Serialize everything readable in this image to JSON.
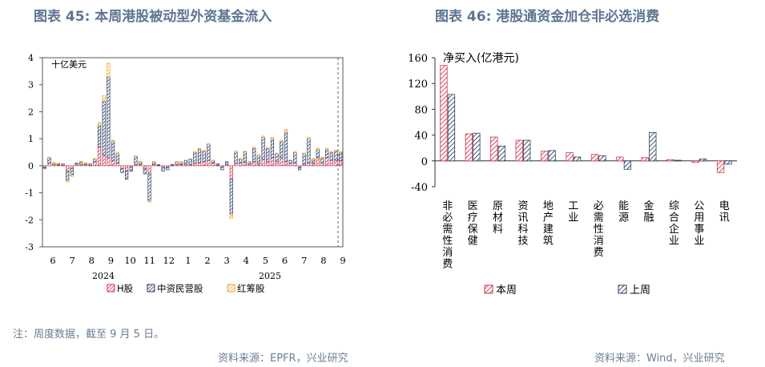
{
  "left": {
    "title": "图表 45: 本周港股被动型外资基金流入",
    "unit_label": "十亿美元",
    "footnote": "注：周度数据，截至 9 月 5 日。",
    "source": "资料来源：EPFR，兴业研究"
  },
  "right": {
    "title": "图表 46: 港股通资金加仓非必选消费",
    "unit_label": "净买入(亿港元)",
    "source": "资料来源：Wind，兴业研究"
  },
  "colors": {
    "h_share": "#d0344f",
    "private": "#2e3f66",
    "red_chip": "#f0a832",
    "title": "#5d7693"
  },
  "chart_data": [
    {
      "type": "bar",
      "stacked": true,
      "title": "本周港股被动型外资基金流入",
      "ylabel": "十亿美元",
      "ylim": [
        -3,
        4
      ],
      "yticks": [
        -3,
        -2,
        -1,
        0,
        1,
        2,
        3,
        4
      ],
      "month_labels": [
        "6",
        "7",
        "8",
        "9",
        "10",
        "11",
        "12",
        "1",
        "2",
        "3",
        "4",
        "5",
        "6",
        "7",
        "8",
        "9"
      ],
      "year_labels": [
        "2024",
        "2025"
      ],
      "legend": [
        "H股",
        "中资民营股",
        "红筹股"
      ],
      "legend_position": "bottom",
      "x": [
        "2024-06-07",
        "2024-06-14",
        "2024-06-21",
        "2024-06-28",
        "2024-07-05",
        "2024-07-12",
        "2024-07-19",
        "2024-07-26",
        "2024-08-02",
        "2024-08-09",
        "2024-08-16",
        "2024-08-23",
        "2024-08-30",
        "2024-09-06",
        "2024-09-13",
        "2024-09-20",
        "2024-09-27",
        "2024-10-04",
        "2024-10-11",
        "2024-10-18",
        "2024-10-25",
        "2024-11-01",
        "2024-11-08",
        "2024-11-15",
        "2024-11-22",
        "2024-11-29",
        "2024-12-06",
        "2024-12-13",
        "2024-12-20",
        "2024-12-27",
        "2025-01-03",
        "2025-01-10",
        "2025-01-17",
        "2025-01-24",
        "2025-01-31",
        "2025-02-07",
        "2025-02-14",
        "2025-02-21",
        "2025-02-28",
        "2025-03-07",
        "2025-03-14",
        "2025-03-21",
        "2025-03-28",
        "2025-04-04",
        "2025-04-11",
        "2025-04-18",
        "2025-04-25",
        "2025-05-02",
        "2025-05-09",
        "2025-05-16",
        "2025-05-23",
        "2025-05-30",
        "2025-06-06",
        "2025-06-13",
        "2025-06-20",
        "2025-06-27",
        "2025-07-04",
        "2025-07-11",
        "2025-07-18",
        "2025-07-25",
        "2025-08-01",
        "2025-08-08",
        "2025-08-15",
        "2025-08-22",
        "2025-08-29",
        "2025-09-05"
      ],
      "series": [
        {
          "name": "H股",
          "values": [
            -0.05,
            0.1,
            0.05,
            0.03,
            0.02,
            -0.2,
            -0.1,
            0.05,
            0.05,
            0.05,
            0.02,
            0.15,
            0.7,
            0.4,
            0.3,
            0.2,
            0.1,
            -0.1,
            -0.2,
            -0.05,
            0.05,
            0.05,
            -0.1,
            -0.3,
            0.05,
            0.02,
            -0.05,
            -0.05,
            0.02,
            0.05,
            0.04,
            0.05,
            0.05,
            0.1,
            0.12,
            0.15,
            0.2,
            0.1,
            0.02,
            -0.05,
            0.05,
            -0.5,
            0.1,
            0.1,
            0.12,
            0.05,
            0.15,
            0.08,
            0.25,
            0.15,
            0.3,
            0.15,
            0.3,
            0.15,
            0.1,
            0.1,
            -0.05,
            0.05,
            0.1,
            0.1,
            0.3,
            0.1,
            0.3,
            0.2,
            0.2,
            0.2
          ]
        },
        {
          "name": "中资民营股",
          "values": [
            -0.05,
            0.2,
            0.05,
            0.05,
            0.05,
            -0.35,
            -0.25,
            0.05,
            0.1,
            0.05,
            0.05,
            0.1,
            0.8,
            2.0,
            3.0,
            0.7,
            0.35,
            -0.15,
            -0.3,
            -0.15,
            0.3,
            0.1,
            -0.2,
            -1.0,
            0.1,
            0.02,
            -0.15,
            -0.1,
            0.03,
            0.1,
            0.1,
            0.15,
            0.2,
            0.4,
            0.5,
            0.4,
            0.6,
            0.1,
            0.05,
            -0.1,
            0.1,
            -1.3,
            0.4,
            0.15,
            0.4,
            0.1,
            0.5,
            0.3,
            0.8,
            0.5,
            0.7,
            0.3,
            0.6,
            1.1,
            0.1,
            0.4,
            -0.1,
            0.4,
            0.9,
            0.15,
            0.3,
            0.2,
            0.3,
            0.3,
            0.35,
            0.3
          ]
        },
        {
          "name": "红筹股",
          "values": [
            0,
            0.02,
            0.02,
            0.02,
            0,
            -0.05,
            -0.05,
            0,
            0.02,
            0.01,
            0,
            0.02,
            0.1,
            0.2,
            0.5,
            0.05,
            0.05,
            0,
            0,
            0,
            0.02,
            0.02,
            0,
            -0.05,
            0.01,
            0,
            0,
            0,
            0,
            0.01,
            0.01,
            0,
            0,
            0.02,
            0.02,
            0.02,
            0.02,
            0.01,
            0,
            0,
            0,
            -0.15,
            0.05,
            0.02,
            0.02,
            0.01,
            0.05,
            0.02,
            0.05,
            0.02,
            0.05,
            0.02,
            0.05,
            0.1,
            0,
            0.02,
            0,
            0.02,
            0.05,
            0.02,
            0.05,
            0.02,
            0.05,
            0.02,
            0.02,
            0.02
          ]
        }
      ]
    },
    {
      "type": "bar",
      "title": "港股通资金加仓非必选消费",
      "ylabel": "净买入(亿港元)",
      "ylim": [
        -40,
        160
      ],
      "yticks": [
        -40,
        0,
        40,
        80,
        120,
        160
      ],
      "categories": [
        "非必需性消费",
        "医疗保健",
        "原材料",
        "资讯科技",
        "地产建筑",
        "工业",
        "必需性消费",
        "能源",
        "金融",
        "综合企业",
        "公用事业",
        "电讯"
      ],
      "legend": [
        "本周",
        "上周"
      ],
      "legend_position": "bottom",
      "series": [
        {
          "name": "本周",
          "values": [
            148,
            42,
            37,
            32,
            15,
            13,
            10,
            6,
            5,
            2,
            -2,
            -18
          ]
        },
        {
          "name": "上周",
          "values": [
            103,
            43,
            23,
            32,
            16,
            6,
            8,
            -13,
            44,
            1,
            3,
            -5
          ]
        }
      ]
    }
  ]
}
